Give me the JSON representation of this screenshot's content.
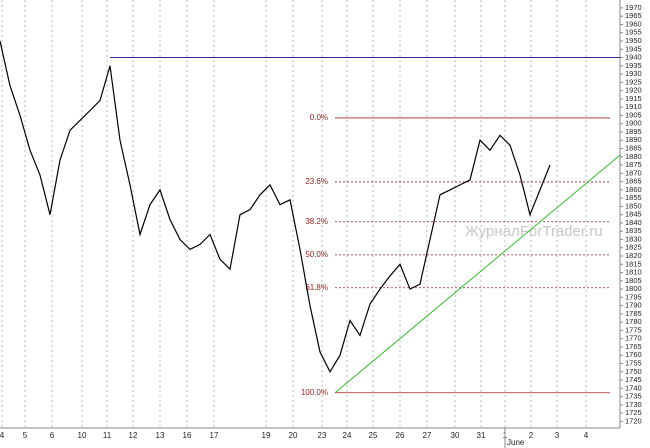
{
  "chart_data": {
    "type": "line",
    "series": [
      {
        "color": "#000000",
        "x": [
          0,
          1,
          2,
          3,
          4,
          5,
          6,
          7,
          8,
          9,
          10,
          11,
          12,
          13,
          14,
          15,
          16,
          17,
          18,
          19,
          20,
          21,
          22,
          23,
          24,
          25,
          26,
          27,
          28,
          29,
          30,
          31,
          32,
          33,
          34,
          35,
          36,
          37,
          38,
          39,
          40,
          41,
          42,
          43,
          44,
          45,
          46,
          47,
          48,
          49,
          50,
          51,
          52,
          53,
          54,
          55
        ],
        "values": [
          1950,
          1923,
          1905,
          1884,
          1869,
          1845,
          1878,
          1896,
          1902,
          1908,
          1914,
          1935,
          1890,
          1863,
          1833,
          1851,
          1860,
          1842,
          1830,
          1824,
          1827,
          1833,
          1818,
          1812,
          1845,
          1848,
          1857,
          1863,
          1851,
          1854,
          1824,
          1790,
          1762,
          1750,
          1760,
          1781,
          1772,
          1791,
          1800,
          1808,
          1815,
          1800,
          1803,
          1830,
          1857,
          1860,
          1863,
          1866,
          1890,
          1884,
          1893,
          1887,
          1869,
          1845,
          1860,
          1875
        ]
      }
    ],
    "xlim": [
      0,
      62
    ],
    "ylim": [
      1716,
      1974.8
    ],
    "xticks": [
      {
        "value": 0.2,
        "label": "4"
      },
      {
        "value": 2.5,
        "label": "5"
      },
      {
        "value": 5.2,
        "label": "6"
      },
      {
        "value": 8.2,
        "label": "10"
      },
      {
        "value": 10.7,
        "label": "11"
      },
      {
        "value": 13.3,
        "label": "12"
      },
      {
        "value": 16,
        "label": "13"
      },
      {
        "value": 18.7,
        "label": "16"
      },
      {
        "value": 21.4,
        "label": "17"
      },
      {
        "value": 26.6,
        "label": "19"
      },
      {
        "value": 29.3,
        "label": "20"
      },
      {
        "value": 32.2,
        "label": "23"
      },
      {
        "value": 34.7,
        "label": "24"
      },
      {
        "value": 37.3,
        "label": "25"
      },
      {
        "value": 40,
        "label": "26"
      },
      {
        "value": 42.7,
        "label": "27"
      },
      {
        "value": 45.5,
        "label": "30"
      },
      {
        "value": 48.1,
        "label": "31"
      },
      {
        "value": 50.5,
        "label": "1"
      },
      {
        "value": 53.1,
        "label": "2"
      },
      {
        "value": 55.7,
        "label": "3"
      },
      {
        "value": 58.6,
        "label": "4"
      }
    ],
    "x_sublabel": {
      "value": 50.5,
      "label": "June"
    },
    "yticks": [
      1720,
      1725,
      1730,
      1735,
      1740,
      1745,
      1750,
      1755,
      1760,
      1765,
      1770,
      1775,
      1780,
      1785,
      1790,
      1795,
      1800,
      1805,
      1810,
      1815,
      1820,
      1825,
      1830,
      1835,
      1840,
      1845,
      1850,
      1855,
      1860,
      1865,
      1870,
      1875,
      1880,
      1885,
      1890,
      1895,
      1900,
      1905,
      1910,
      1915,
      1920,
      1925,
      1930,
      1935,
      1940,
      1945,
      1950,
      1955,
      1960,
      1965,
      1970
    ],
    "grid": true,
    "fib_x": [
      33.5,
      61
    ],
    "fib_levels": [
      {
        "label": "0.0%",
        "value": 1903.5
      },
      {
        "label": "23.6%",
        "value": 1864.8
      },
      {
        "label": "38.2%",
        "value": 1840.7
      },
      {
        "label": "50.0%",
        "value": 1820.7
      },
      {
        "label": "61.8%",
        "value": 1800.8
      },
      {
        "label": "100.0%",
        "value": 1737.3
      }
    ],
    "lines": [
      {
        "x": [
          11,
          62
        ],
        "y": [
          1940,
          1940
        ],
        "color": "#2b2b9a"
      },
      {
        "x": [
          33.5,
          62
        ],
        "y": [
          1737.3,
          1881
        ],
        "color": "#33bb33"
      }
    ],
    "watermark": "ЖурналForTrader.ru"
  }
}
